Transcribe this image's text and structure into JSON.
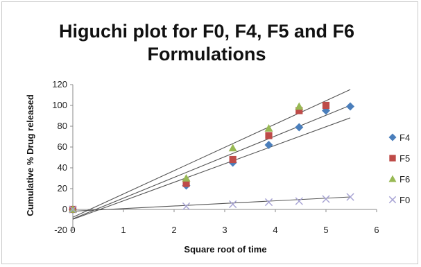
{
  "chart_data": {
    "type": "scatter",
    "title_line1": "Higuchi plot for F0, F4, F5 and F6",
    "title_line2": "Formulations",
    "xlabel": "Square root of time",
    "ylabel": "Cumulative % Drug released",
    "xlim": [
      0,
      6
    ],
    "ylim": [
      -20,
      120
    ],
    "xticks": [
      0,
      1,
      2,
      3,
      4,
      5,
      6
    ],
    "yticks": [
      -20,
      0,
      20,
      40,
      60,
      80,
      100,
      120
    ],
    "grid": false,
    "legend_position": "right",
    "series": [
      {
        "name": "F4",
        "marker": "diamond",
        "color": "#4a7ebb",
        "x": [
          0,
          2.24,
          3.16,
          3.87,
          4.47,
          5,
          5.48
        ],
        "y": [
          0,
          23,
          45,
          62,
          79,
          95,
          99
        ],
        "trendline": [
          -9.5,
          17.8
        ]
      },
      {
        "name": "F5",
        "marker": "square",
        "color": "#be4b48",
        "x": [
          0,
          2.24,
          3.16,
          3.87,
          4.47,
          5
        ],
        "y": [
          0,
          25,
          48,
          71,
          95,
          100
        ],
        "trendline": [
          -9.0,
          19.9
        ]
      },
      {
        "name": "F6",
        "marker": "triangle",
        "color": "#98b954",
        "x": [
          0,
          2.24,
          3.16,
          3.87,
          4.47
        ],
        "y": [
          0,
          30,
          59,
          78,
          99
        ],
        "trendline": [
          -7.5,
          22.4
        ]
      },
      {
        "name": "F0",
        "marker": "x",
        "color": "#a8a4d4",
        "x": [
          0,
          2.24,
          3.16,
          3.87,
          4.47,
          5,
          5.48
        ],
        "y": [
          0,
          3,
          5,
          7,
          8,
          10,
          12
        ],
        "trendline": [
          -1.7,
          2.5
        ]
      }
    ]
  }
}
